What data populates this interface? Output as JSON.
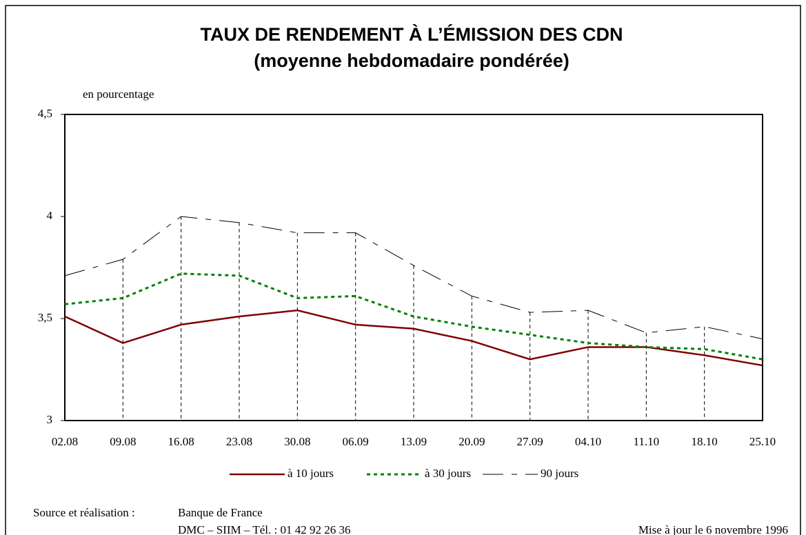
{
  "chart_data": {
    "type": "line",
    "title": "TAUX DE RENDEMENT À L’ÉMISSION DES CDN",
    "subtitle": "(moyenne hebdomadaire pondérée)",
    "y_label": "en pourcentage",
    "categories": [
      "02.08",
      "09.08",
      "16.08",
      "23.08",
      "30.08",
      "06.09",
      "13.09",
      "20.09",
      "27.09",
      "04.10",
      "11.10",
      "18.10",
      "25.10"
    ],
    "series": [
      {
        "name": "à 10 jours",
        "color": "#800000",
        "dash": "solid",
        "values": [
          3.51,
          3.38,
          3.47,
          3.51,
          3.54,
          3.47,
          3.45,
          3.39,
          3.3,
          3.36,
          3.36,
          3.32,
          3.27
        ]
      },
      {
        "name": "à 30 jours",
        "color": "#008000",
        "dash": "dotted",
        "values": [
          3.57,
          3.6,
          3.72,
          3.71,
          3.6,
          3.61,
          3.51,
          3.46,
          3.42,
          3.38,
          3.36,
          3.35,
          3.3
        ]
      },
      {
        "name": "90 jours",
        "color": "#000000",
        "dash": "dashed",
        "values": [
          3.71,
          3.79,
          4.0,
          3.97,
          3.92,
          3.92,
          3.76,
          3.61,
          3.53,
          3.54,
          3.43,
          3.46,
          3.4
        ]
      }
    ],
    "ylim": [
      3,
      4.5
    ],
    "yticks": [
      3,
      {
        "value": 3.5,
        "label": "3,5"
      },
      4,
      {
        "value": 4.5,
        "label": "4,5"
      }
    ],
    "drop_lines": true,
    "legend": "bottom"
  },
  "footer": {
    "source_label": "Source et réalisation :",
    "source": "Banque de France",
    "contact": "DMC – SIIM – Tél. : 01 42 92 26 36",
    "updated": "Mise à jour le 6 novembre 1996"
  }
}
